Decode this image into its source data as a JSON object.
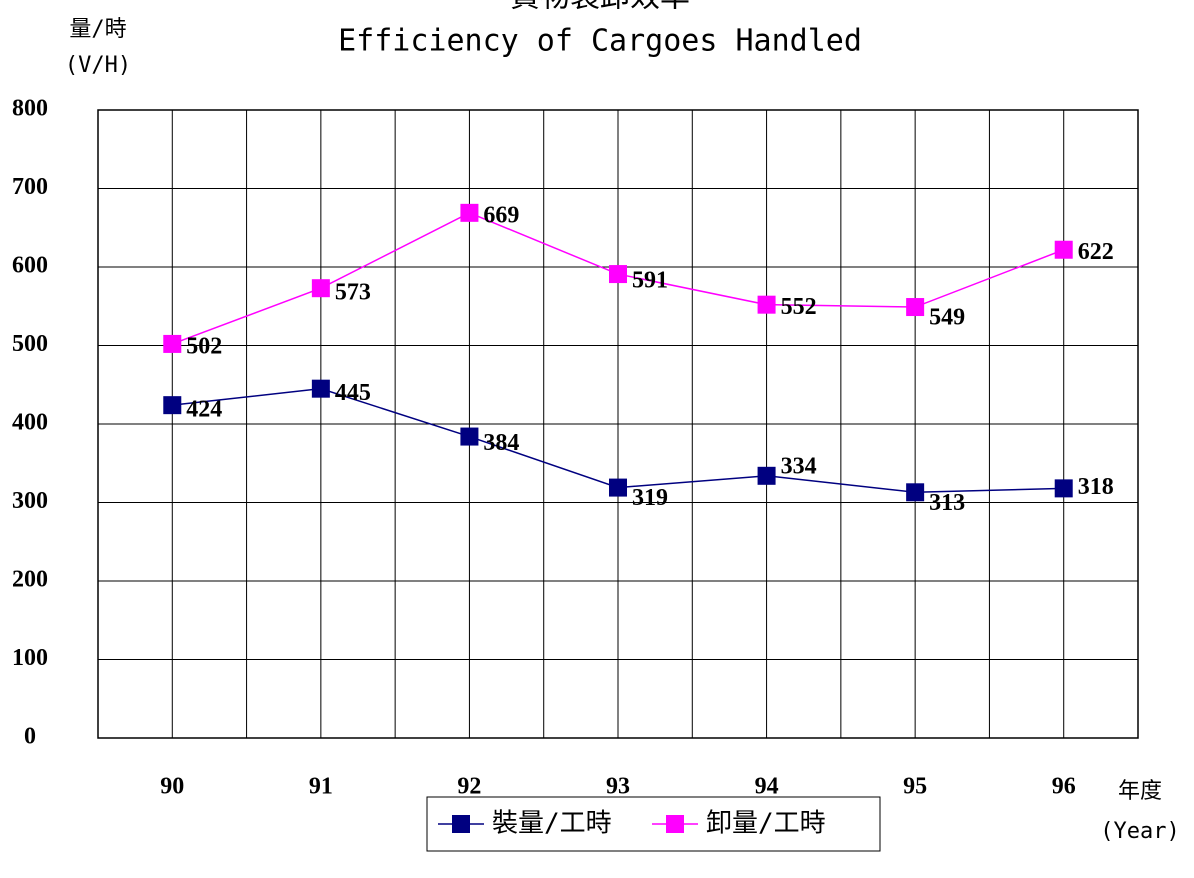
{
  "chart_data": {
    "type": "line",
    "title": "貨物裝卸效率",
    "subtitle": "Efficiency of Cargoes Handled",
    "ylabel": [
      "量/時",
      "(V/H)"
    ],
    "xlabel": [
      "年度",
      "(Year)"
    ],
    "categories": [
      "90",
      "91",
      "92",
      "93",
      "94",
      "95",
      "96"
    ],
    "series": [
      {
        "name": "裝量/工時",
        "color": "#000080",
        "values": [
          424,
          445,
          384,
          319,
          334,
          313,
          318
        ]
      },
      {
        "name": "卸量/工時",
        "color": "#ff00ff",
        "values": [
          502,
          573,
          669,
          591,
          552,
          549,
          622
        ]
      }
    ],
    "ylim": [
      0,
      800
    ],
    "yticks": [
      0,
      100,
      200,
      300,
      400,
      500,
      600,
      700,
      800
    ],
    "grid": true,
    "legend": "bottom"
  }
}
